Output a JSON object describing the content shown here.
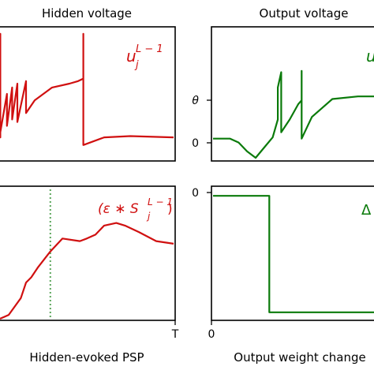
{
  "colors": {
    "hidden": "#d01010",
    "output": "#0a7a0a",
    "marker": "#5aa55a"
  },
  "chart_data": [
    {
      "id": "hidden-voltage",
      "type": "line",
      "title": "Hidden voltage",
      "annotation": "u_j^{L-1}",
      "xlim": [
        0,
        1
      ],
      "ylim": [
        0,
        1
      ],
      "series": [
        {
          "values": [
            [
              0,
              0.16
            ],
            [
              0.002,
              0.16
            ],
            [
              0.002,
              0.97
            ],
            [
              0.002,
              0.2
            ],
            [
              0.04,
              0.5
            ],
            [
              0.04,
              0.25
            ],
            [
              0.07,
              0.55
            ],
            [
              0.07,
              0.3
            ],
            [
              0.1,
              0.58
            ],
            [
              0.1,
              0.28
            ],
            [
              0.15,
              0.6
            ],
            [
              0.15,
              0.35
            ],
            [
              0.2,
              0.45
            ],
            [
              0.3,
              0.55
            ],
            [
              0.4,
              0.58
            ],
            [
              0.45,
              0.6
            ],
            [
              0.48,
              0.62
            ],
            [
              0.48,
              0.97
            ],
            [
              0.48,
              0.1
            ],
            [
              0.6,
              0.16
            ],
            [
              0.75,
              0.17
            ],
            [
              1,
              0.16
            ]
          ]
        }
      ]
    },
    {
      "id": "output-voltage",
      "type": "line",
      "title": "Output voltage",
      "annotation": "u",
      "yticks": [
        {
          "label": "θ",
          "value": 0.5
        },
        {
          "label": "0",
          "value": 0.15
        }
      ],
      "xlim": [
        0,
        1
      ],
      "ylim": [
        0,
        1
      ],
      "series": [
        {
          "values": [
            [
              0,
              0.15
            ],
            [
              0.1,
              0.15
            ],
            [
              0.15,
              0.12
            ],
            [
              0.2,
              0.05
            ],
            [
              0.25,
              0.0
            ],
            [
              0.3,
              0.08
            ],
            [
              0.35,
              0.16
            ],
            [
              0.38,
              0.3
            ],
            [
              0.38,
              0.55
            ],
            [
              0.4,
              0.67
            ],
            [
              0.4,
              0.2
            ],
            [
              0.45,
              0.3
            ],
            [
              0.5,
              0.42
            ],
            [
              0.52,
              0.45
            ],
            [
              0.52,
              0.68
            ],
            [
              0.52,
              0.15
            ],
            [
              0.58,
              0.32
            ],
            [
              0.7,
              0.46
            ],
            [
              0.85,
              0.48
            ],
            [
              1,
              0.48
            ]
          ]
        }
      ]
    },
    {
      "id": "hidden-psp",
      "type": "line",
      "annotation": "(ε * S_j^{L-1})",
      "xlabel": "Hidden-evoked PSP",
      "xticks": [
        {
          "label": "T",
          "value": 1
        }
      ],
      "marker_x": 0.29,
      "xlim": [
        0,
        1
      ],
      "ylim": [
        0,
        1
      ],
      "series": [
        {
          "values": [
            [
              0,
              0
            ],
            [
              0.05,
              0.03
            ],
            [
              0.12,
              0.16
            ],
            [
              0.15,
              0.28
            ],
            [
              0.18,
              0.32
            ],
            [
              0.22,
              0.4
            ],
            [
              0.29,
              0.52
            ],
            [
              0.36,
              0.62
            ],
            [
              0.46,
              0.6
            ],
            [
              0.5,
              0.62
            ],
            [
              0.55,
              0.65
            ],
            [
              0.6,
              0.72
            ],
            [
              0.67,
              0.74
            ],
            [
              0.72,
              0.72
            ],
            [
              0.8,
              0.67
            ],
            [
              0.9,
              0.6
            ],
            [
              1,
              0.58
            ]
          ]
        }
      ]
    },
    {
      "id": "output-weight-change",
      "type": "line",
      "annotation": "Δ",
      "xlabel": "Output weight change",
      "xticks": [
        {
          "label": "0",
          "value": 0
        }
      ],
      "yticks": [
        {
          "label": "0",
          "value": 0.95
        }
      ],
      "xlim": [
        0,
        1
      ],
      "ylim": [
        0,
        1
      ],
      "series": [
        {
          "values": [
            [
              0,
              0.95
            ],
            [
              0.33,
              0.95
            ],
            [
              0.33,
              0.05
            ],
            [
              1,
              0.05
            ]
          ]
        }
      ]
    }
  ]
}
